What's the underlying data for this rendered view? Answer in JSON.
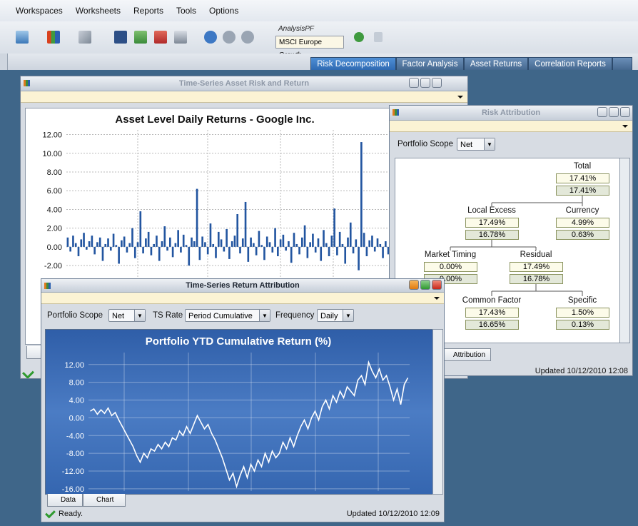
{
  "menu": [
    "Workspaces",
    "Worksheets",
    "Reports",
    "Tools",
    "Options"
  ],
  "toolbar": {
    "portfolio_label": "AnalysisPF",
    "benchmark": "MSCI Europe Growth"
  },
  "tabs": [
    "Risk Decomposition",
    "Factor Analysis",
    "Asset Returns",
    "Correlation Reports"
  ],
  "asset_window": {
    "title": "Time-Series Asset Risk and Return",
    "chart": {
      "type": "bar",
      "title": "Asset Level Daily Returns - Google Inc.",
      "color": "#2255a0",
      "grid": true,
      "ylim": [
        -10,
        12.5
      ],
      "yticks": [
        {
          "value": 12,
          "label": "12.00"
        },
        {
          "value": 10,
          "label": "10.00"
        },
        {
          "value": 8,
          "label": "8.00"
        },
        {
          "value": 6,
          "label": "6.00"
        },
        {
          "value": 4,
          "label": "4.00"
        },
        {
          "value": 2,
          "label": "2.00"
        },
        {
          "value": 0,
          "label": "0.00"
        },
        {
          "value": -2,
          "label": "-2.00"
        }
      ],
      "values": [
        1.0,
        -0.5,
        1.2,
        0.4,
        -1.0,
        0.8,
        1.5,
        -0.3,
        0.6,
        1.2,
        -0.8,
        0.5,
        1.0,
        -1.5,
        0.3,
        0.9,
        -0.4,
        1.4,
        0.2,
        -1.8,
        0.7,
        1.1,
        -0.6,
        0.4,
        2.0,
        -1.2,
        0.5,
        3.8,
        -0.7,
        0.9,
        1.6,
        -0.9,
        0.3,
        1.2,
        -1.5,
        0.6,
        2.2,
        -0.4,
        1.0,
        -1.1,
        0.4,
        1.8,
        -0.6,
        1.3,
        0.2,
        -2.0,
        1.0,
        0.6,
        6.2,
        -1.4,
        1.1,
        0.5,
        -0.8,
        2.5,
        0.3,
        -1.2,
        1.6,
        0.8,
        -0.5,
        1.9,
        -1.3,
        0.6,
        1.2,
        3.5,
        -0.7,
        0.9,
        4.8,
        -1.6,
        1.0,
        0.4,
        -0.9,
        1.7,
        0.2,
        -1.4,
        1.1,
        0.5,
        -0.6,
        2.0,
        -1.0,
        0.8,
        1.3,
        -0.4,
        0.6,
        -1.7,
        1.5,
        0.3,
        -0.8,
        1.0,
        2.3,
        -1.2,
        0.5,
        1.4,
        -0.6,
        0.9,
        -1.5,
        1.8,
        0.4,
        -1.0,
        1.2,
        4.1,
        -0.9,
        1.6,
        0.3,
        -1.8,
        1.0,
        2.6,
        -0.7,
        0.8,
        -2.5,
        11.2,
        1.5,
        -1.0,
        0.7,
        1.2,
        -0.5,
        0.9,
        0.3,
        -1.2,
        0.6,
        -0.8
      ]
    }
  },
  "risk_window": {
    "title": "Risk Attribution",
    "scope_label": "Portfolio Scope",
    "scope": "Net",
    "nodes": [
      {
        "label": "Total",
        "values": [
          "17.41%",
          "17.41%"
        ]
      },
      {
        "label": "Local Excess",
        "values": [
          "17.49%",
          "16.78%"
        ]
      },
      {
        "label": "Currency",
        "values": [
          "4.99%",
          "0.63%"
        ]
      },
      {
        "label": "Market Timing",
        "values": [
          "0.00%",
          "0.00%"
        ]
      },
      {
        "label": "Residual",
        "values": [
          "17.49%",
          "16.78%"
        ]
      },
      {
        "label": "Common Factor",
        "values": [
          "17.43%",
          "16.65%"
        ]
      },
      {
        "label": "Specific",
        "values": [
          "1.50%",
          "0.13%"
        ]
      }
    ],
    "tab": "Attribution",
    "status": "Updated 10/12/2010 12:08"
  },
  "return_window": {
    "title": "Time-Series Return Attribution",
    "scope_label": "Portfolio Scope",
    "scope": "Net",
    "rate_label": "TS Rate",
    "rate": "Period Cumulative",
    "frequency_label": "Frequency",
    "frequency": "Daily",
    "chart": {
      "type": "line",
      "title": "Portfolio YTD Cumulative Return (%)",
      "color": "#ffffff",
      "grid": true,
      "ylim": [
        -16.5,
        14.7
      ],
      "yticks": [
        {
          "value": 12,
          "label": "12.00"
        },
        {
          "value": 8,
          "label": "8.00"
        },
        {
          "value": 4,
          "label": "4.00"
        },
        {
          "value": 0,
          "label": "0.00"
        },
        {
          "value": -4,
          "label": "-4.00"
        },
        {
          "value": -8,
          "label": "-8.00"
        },
        {
          "value": -12,
          "label": "-12.00"
        },
        {
          "value": -16,
          "label": "-16.00"
        }
      ],
      "values": [
        1.5,
        2.0,
        0.8,
        1.8,
        1.0,
        2.2,
        0.5,
        1.2,
        -0.5,
        -2.0,
        -3.5,
        -5.0,
        -6.5,
        -8.5,
        -10.0,
        -8.0,
        -9.0,
        -7.0,
        -7.5,
        -6.0,
        -7.0,
        -5.5,
        -6.5,
        -4.5,
        -5.0,
        -3.0,
        -4.0,
        -2.0,
        -3.5,
        -1.5,
        0.5,
        -1.0,
        -2.5,
        -1.5,
        -3.5,
        -5.0,
        -7.0,
        -9.0,
        -11.5,
        -14.0,
        -12.5,
        -15.5,
        -13.0,
        -11.0,
        -13.5,
        -10.5,
        -12.0,
        -9.5,
        -11.0,
        -8.0,
        -10.0,
        -7.5,
        -9.0,
        -8.0,
        -5.5,
        -7.0,
        -4.5,
        -6.5,
        -4.0,
        -2.0,
        -0.5,
        -2.5,
        0.0,
        1.5,
        -0.5,
        2.5,
        4.0,
        2.0,
        5.0,
        3.5,
        6.0,
        4.5,
        7.0,
        6.0,
        5.0,
        8.5,
        9.5,
        7.5,
        12.5,
        10.5,
        9.0,
        11.0,
        8.5,
        9.5,
        7.0,
        4.0,
        6.5,
        3.0,
        7.5,
        9.0
      ]
    },
    "tabs": [
      "Data",
      "Chart"
    ],
    "status": "Ready.",
    "updated": "Updated 10/12/2010 12:09"
  }
}
